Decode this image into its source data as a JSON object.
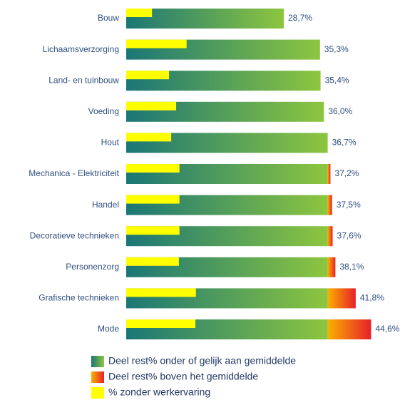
{
  "chart_data": {
    "type": "bar",
    "categories": [
      "Bouw",
      "Lichaamsverzorging",
      "Land- en tuinbouw",
      "Voeding",
      "Hout",
      "Mechanica - Elektriciteit",
      "Handel",
      "Decoratieve technieken",
      "Personenzorg",
      "Grafische technieken",
      "Mode"
    ],
    "series": [
      {
        "name": "Deel rest% onder of gelijk aan gemiddelde",
        "colors": [
          "#1b7676",
          "#8dc63f"
        ],
        "values": [
          28.7,
          35.3,
          35.4,
          36.0,
          36.7,
          36.7,
          36.7,
          36.7,
          36.7,
          36.7,
          36.7
        ]
      },
      {
        "name": "Deel rest% boven het gemiddelde",
        "colors": [
          "#f9b000",
          "#e8202a"
        ],
        "values": [
          0,
          0,
          0,
          0,
          0,
          0.5,
          0.8,
          0.9,
          1.4,
          5.1,
          7.9
        ]
      },
      {
        "name": "% zonder werkervaring",
        "color": "#ffff00",
        "values": [
          4.7,
          11.0,
          7.8,
          9.1,
          8.2,
          9.7,
          9.7,
          9.7,
          9.6,
          12.7,
          12.6
        ]
      }
    ],
    "totals": [
      28.7,
      35.3,
      35.4,
      36.0,
      36.7,
      37.2,
      37.5,
      37.6,
      38.1,
      41.8,
      44.6
    ],
    "total_labels": [
      "28,7%",
      "35,3%",
      "35,4%",
      "36,0%",
      "36,7%",
      "37,2%",
      "37,5%",
      "37,6%",
      "38,1%",
      "41,8%",
      "44,6%"
    ]
  }
}
